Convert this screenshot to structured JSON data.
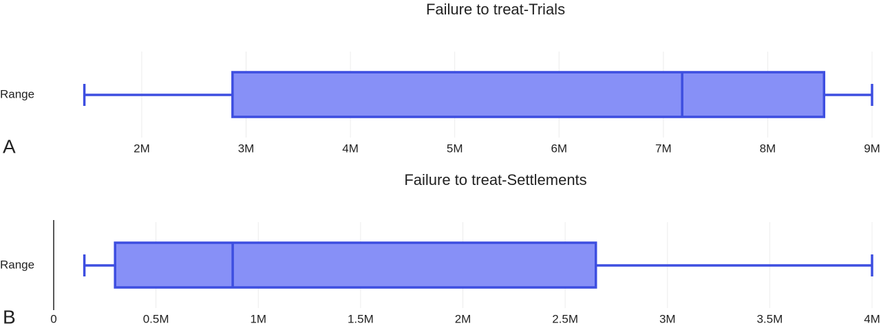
{
  "chart_data": [
    {
      "type": "box",
      "panel": "A",
      "title": "Failure to treat-Trials",
      "categories": [
        "Range"
      ],
      "min": 1450000,
      "q1": 2870000,
      "median": 7180000,
      "q3": 8540000,
      "max": 9000000,
      "color": "#8790f7",
      "line_color": "#3d4ee0",
      "xlim": [
        1400000,
        9000000
      ],
      "xticks": [
        {
          "value": 2000000,
          "label": "2M"
        },
        {
          "value": 3000000,
          "label": "3M"
        },
        {
          "value": 4000000,
          "label": "4M"
        },
        {
          "value": 5000000,
          "label": "5M"
        },
        {
          "value": 6000000,
          "label": "6M"
        },
        {
          "value": 7000000,
          "label": "7M"
        },
        {
          "value": 8000000,
          "label": "8M"
        },
        {
          "value": 9000000,
          "label": "9M"
        }
      ],
      "grid": true
    },
    {
      "type": "box",
      "panel": "B",
      "title": "Failure to treat-Settlements",
      "categories": [
        "Range"
      ],
      "min": 150000,
      "q1": 300000,
      "median": 875000,
      "q3": 2650000,
      "max": 4000000,
      "color": "#8790f7",
      "line_color": "#3d4ee0",
      "xlim": [
        0,
        4000000
      ],
      "xticks": [
        0,
        {
          "value": 500000,
          "label": "0.5M"
        },
        {
          "value": 1000000,
          "label": "1M"
        },
        {
          "value": 1500000,
          "label": "1.5M"
        },
        {
          "value": 2000000,
          "label": "2M"
        },
        {
          "value": 2500000,
          "label": "2.5M"
        },
        {
          "value": 3000000,
          "label": "3M"
        },
        {
          "value": 3500000,
          "label": "3.5M"
        },
        {
          "value": 4000000,
          "label": "4M"
        }
      ],
      "grid": true
    }
  ]
}
